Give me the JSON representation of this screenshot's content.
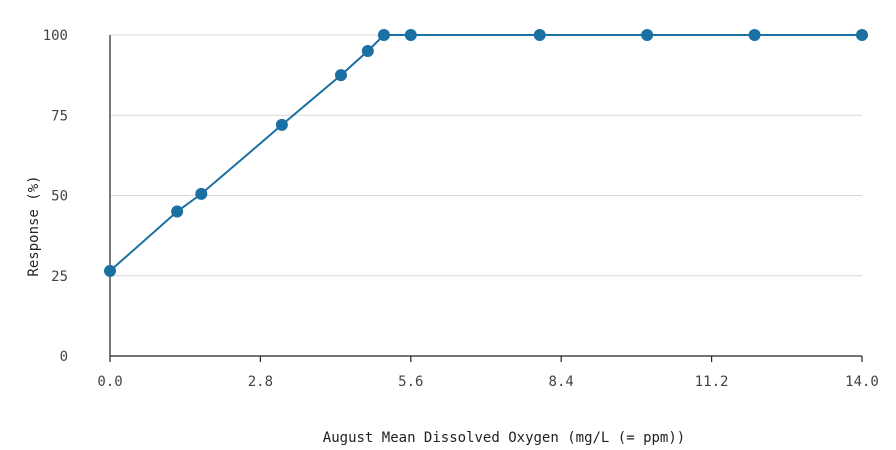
{
  "chart_data": {
    "type": "line",
    "title": "",
    "xlabel": "August Mean Dissolved Oxygen (mg/L (= ppm))",
    "ylabel": "Response (%)",
    "xlim": [
      0,
      14
    ],
    "ylim": [
      0,
      100
    ],
    "x_ticks": [
      "0.0",
      "2.8",
      "5.6",
      "8.4",
      "11.2",
      "14.0"
    ],
    "x_tick_values": [
      0,
      2.8,
      5.6,
      8.4,
      11.2,
      14.0
    ],
    "y_ticks": [
      "0",
      "25",
      "50",
      "75",
      "100"
    ],
    "y_tick_values": [
      0,
      25,
      50,
      75,
      100
    ],
    "grid": "horizontal",
    "line_color": "#1a6fa3",
    "series": [
      {
        "x": [
          0.0,
          1.25,
          1.7,
          3.2,
          4.3,
          4.8,
          5.1,
          5.6,
          8.0,
          10.0,
          12.0,
          14.0
        ],
        "y": [
          26.5,
          45,
          50.5,
          72,
          87.5,
          95,
          100,
          100,
          100,
          100,
          100,
          100
        ]
      }
    ]
  }
}
